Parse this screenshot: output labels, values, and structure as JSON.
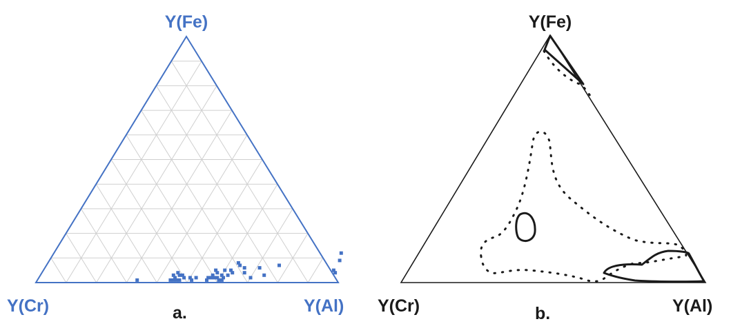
{
  "panel_a": {
    "label": "a.",
    "apex_top": "Y(Fe)",
    "apex_left": "Y(Cr)",
    "apex_right": "Y(Al)",
    "color": "#4472c4",
    "grid_color": "#cfcfcf"
  },
  "panel_b": {
    "label": "b.",
    "apex_top": "Y(Fe)",
    "apex_left": "Y(Cr)",
    "apex_right": "Y(Al)",
    "color": "#1a1a1a"
  },
  "chart_data": {
    "type": "scatter",
    "ternary": true,
    "components": [
      "Y(Cr)",
      "Y(Al)",
      "Y(Fe)"
    ],
    "grid_step": 0.1,
    "points_fe_al": [
      [
        0.01,
        0.33
      ],
      [
        0.01,
        0.44
      ],
      [
        0.01,
        0.45
      ],
      [
        0.01,
        0.46
      ],
      [
        0.01,
        0.47
      ],
      [
        0.02,
        0.45
      ],
      [
        0.02,
        0.48
      ],
      [
        0.03,
        0.46
      ],
      [
        0.02,
        0.5
      ],
      [
        0.01,
        0.51
      ],
      [
        0.03,
        0.44
      ],
      [
        0.04,
        0.45
      ],
      [
        0.03,
        0.47
      ],
      [
        0.02,
        0.52
      ],
      [
        0.01,
        0.56
      ],
      [
        0.02,
        0.56
      ],
      [
        0.02,
        0.57
      ],
      [
        0.03,
        0.57
      ],
      [
        0.02,
        0.58
      ],
      [
        0.02,
        0.59
      ],
      [
        0.01,
        0.6
      ],
      [
        0.03,
        0.6
      ],
      [
        0.02,
        0.61
      ],
      [
        0.01,
        0.61
      ],
      [
        0.03,
        0.62
      ],
      [
        0.04,
        0.58
      ],
      [
        0.05,
        0.57
      ],
      [
        0.05,
        0.6
      ],
      [
        0.05,
        0.62
      ],
      [
        0.04,
        0.63
      ],
      [
        0.07,
        0.64
      ],
      [
        0.06,
        0.66
      ],
      [
        0.04,
        0.67
      ],
      [
        0.02,
        0.7
      ],
      [
        0.06,
        0.71
      ],
      [
        0.03,
        0.74
      ],
      [
        0.07,
        0.77
      ],
      [
        0.08,
        0.63
      ],
      [
        0.12,
        0.95
      ],
      [
        0.09,
        0.96
      ],
      [
        0.05,
        0.96
      ],
      [
        0.04,
        0.97
      ]
    ]
  }
}
